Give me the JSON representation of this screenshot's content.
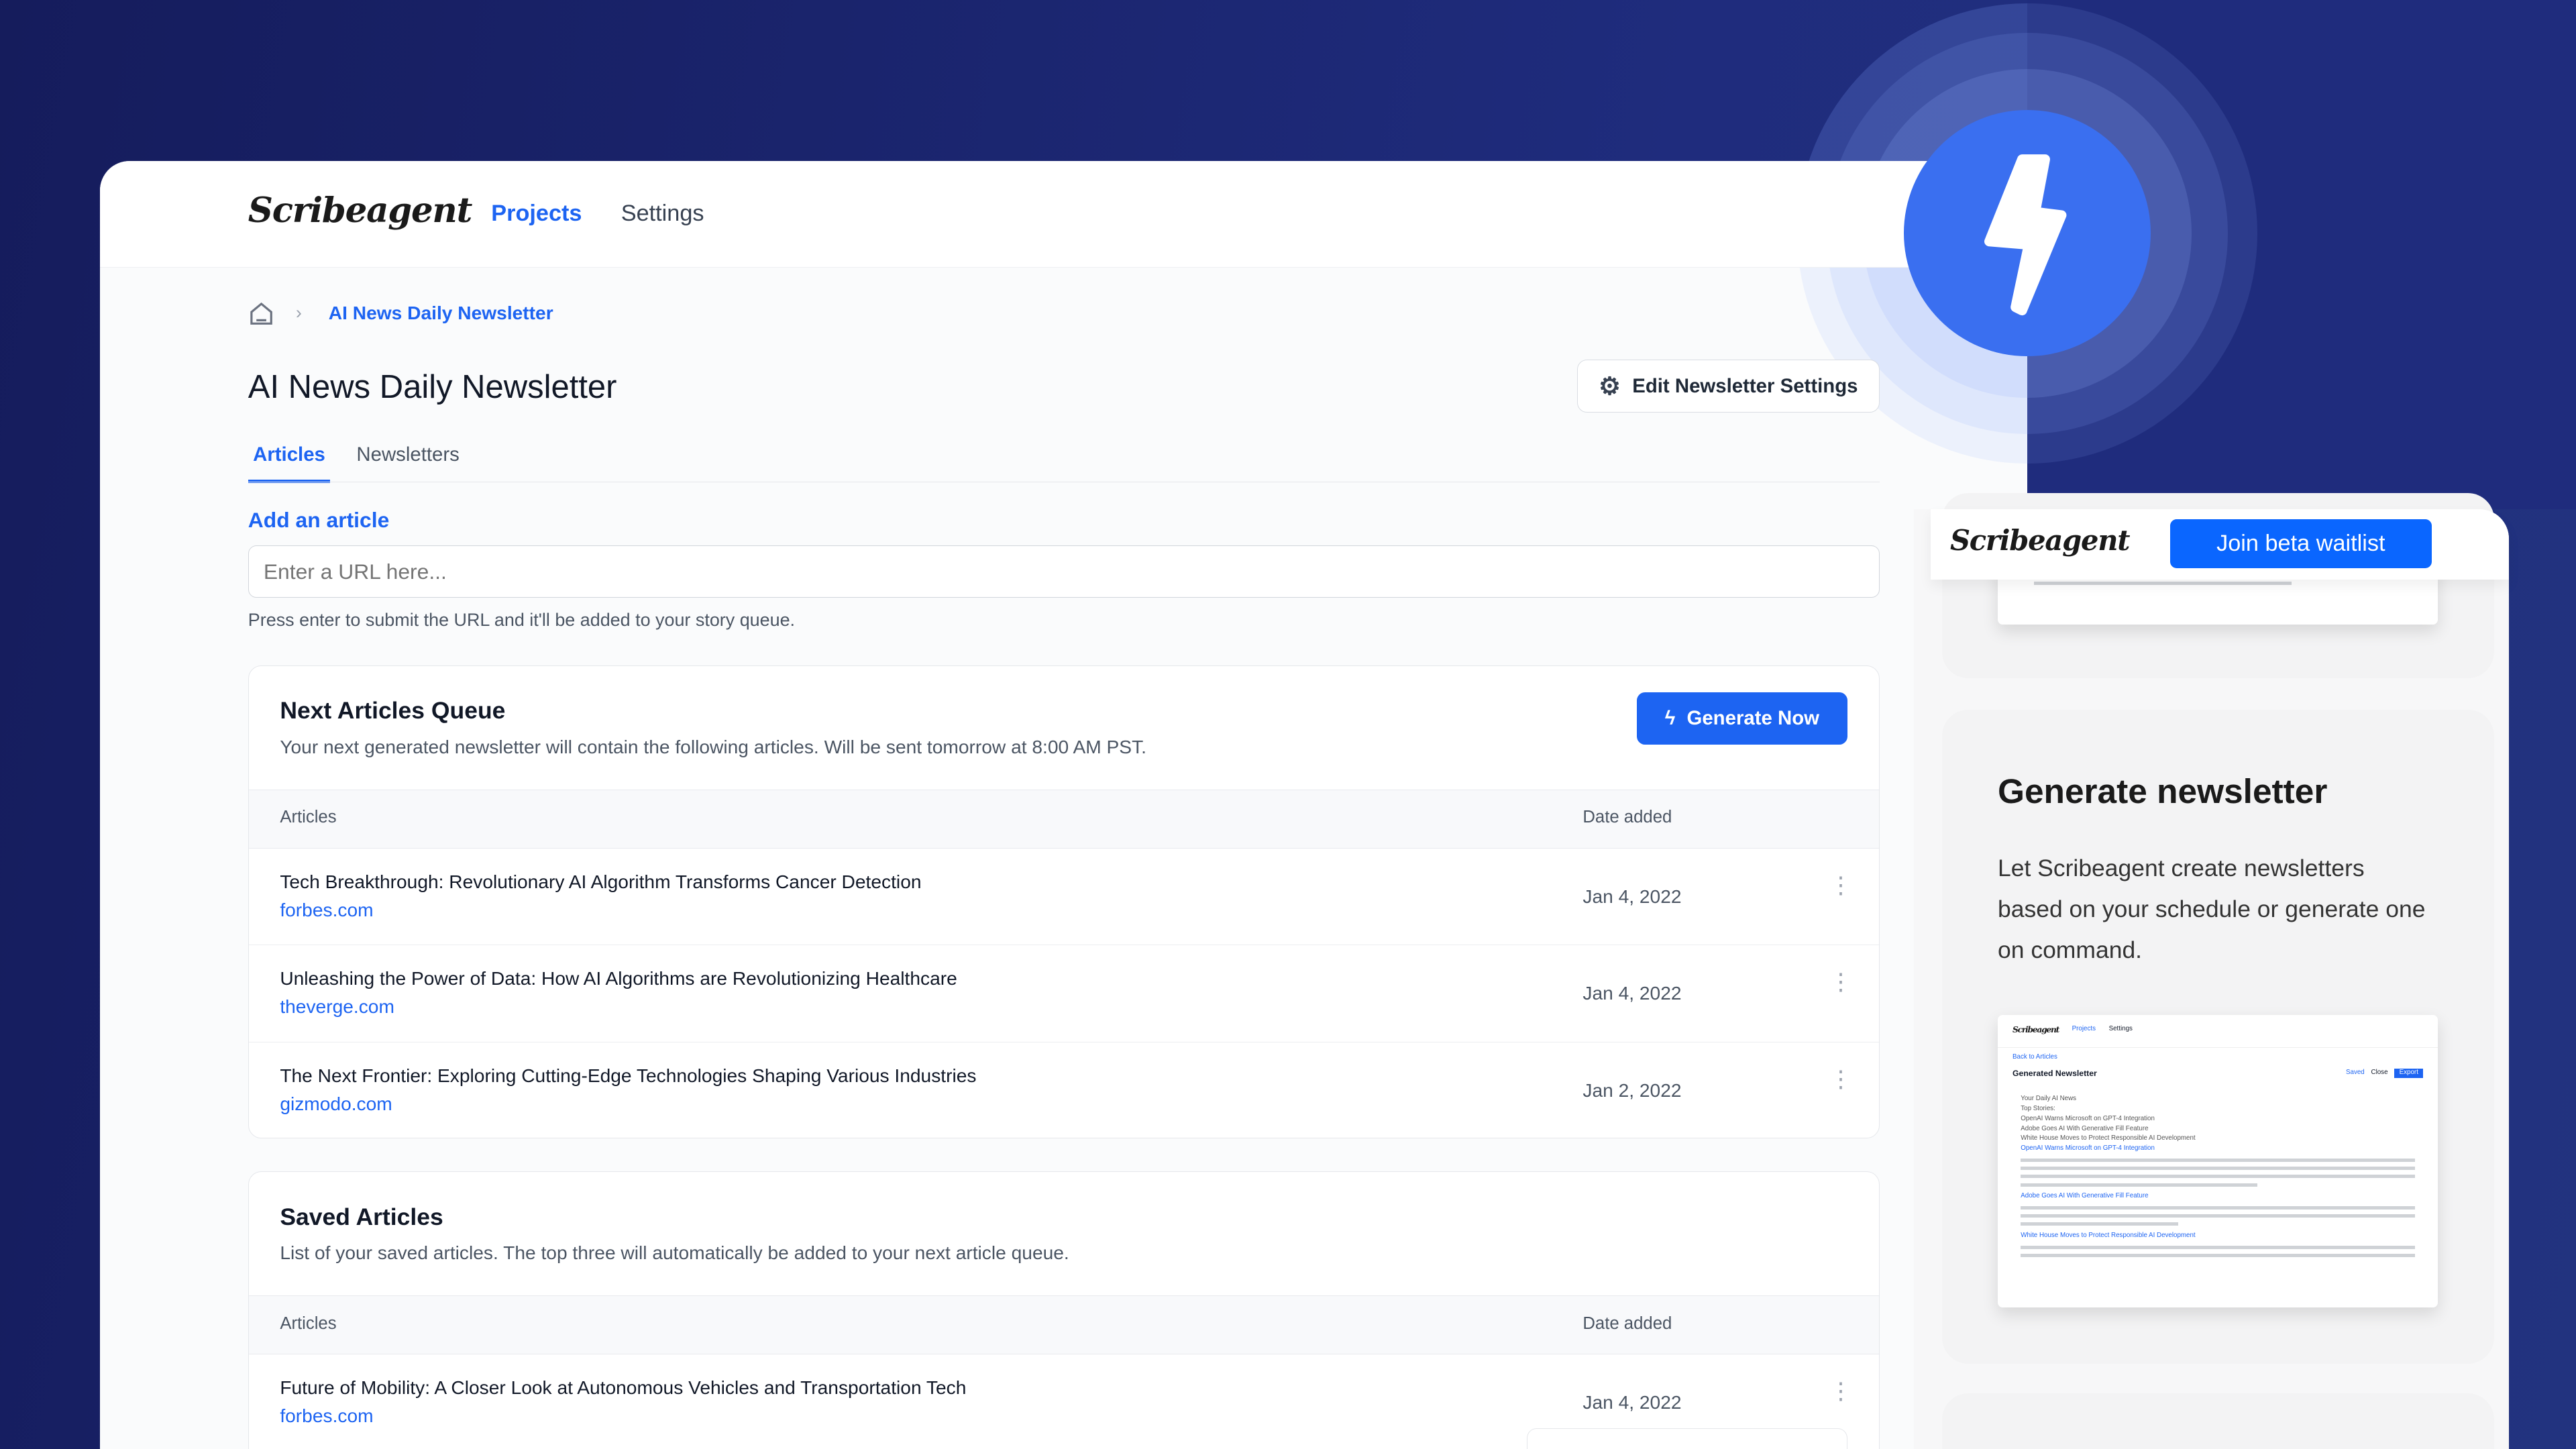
{
  "app": {
    "logo": "Scribeagent",
    "nav": [
      {
        "label": "Projects",
        "active": true
      },
      {
        "label": "Settings",
        "active": false
      }
    ]
  },
  "breadcrumb": {
    "home_icon": "home-icon",
    "current": "AI News Daily Newsletter"
  },
  "page": {
    "title": "AI News Daily Newsletter",
    "edit_button": "Edit Newsletter Settings"
  },
  "tabs": [
    {
      "label": "Articles",
      "active": true
    },
    {
      "label": "Newsletters",
      "active": false
    }
  ],
  "add_article": {
    "label": "Add an article",
    "placeholder": "Enter a URL here...",
    "help": "Press enter to submit the URL and it'll be added to your story queue."
  },
  "queue": {
    "title": "Next Articles Queue",
    "subtitle": "Your next generated newsletter will contain the following articles. Will be sent tomorrow at 8:00 AM PST.",
    "generate_button": "Generate Now",
    "columns": [
      "Articles",
      "Date added"
    ],
    "rows": [
      {
        "title": "Tech Breakthrough: Revolutionary AI Algorithm Transforms Cancer Detection",
        "source": "forbes.com",
        "date": "Jan 4, 2022"
      },
      {
        "title": "Unleashing the Power of Data: How AI Algorithms are Revolutionizing Healthcare",
        "source": "theverge.com",
        "date": "Jan 4, 2022"
      },
      {
        "title": "The Next Frontier: Exploring Cutting-Edge Technologies Shaping Various Industries",
        "source": "gizmodo.com",
        "date": "Jan 2, 2022"
      }
    ]
  },
  "saved": {
    "title": "Saved Articles",
    "subtitle": "List of your saved articles. The top three will automatically be added to your next article queue.",
    "columns": [
      "Articles",
      "Date added"
    ],
    "rows": [
      {
        "title": "Future of Mobility: A Closer Look at Autonomous Vehicles and Transportation Tech",
        "source": "forbes.com",
        "date": "Jan 4, 2022"
      }
    ]
  },
  "promo": {
    "logo": "Scribeagent",
    "cta": "Join beta waitlist",
    "feature_title": "Generate newsletter",
    "feature_text": "Let Scribeagent create newsletters based on your schedule or generate one on command.",
    "preview": {
      "title": "Generated Newsletter",
      "back": "Back to Articles",
      "saved": "Saved",
      "close": "Close",
      "export": "Export",
      "heading": "Your Daily AI News",
      "sub": "Top Stories:",
      "stories": [
        "OpenAI Warns Microsoft on GPT-4 Integration",
        "Adobe Goes AI With Generative Fill Feature",
        "White House Moves to Protect Responsible AI Development"
      ]
    }
  },
  "colors": {
    "accent": "#1d64f2",
    "background": "#1f2c7d",
    "bolt_circle": "#3a6ff0"
  }
}
